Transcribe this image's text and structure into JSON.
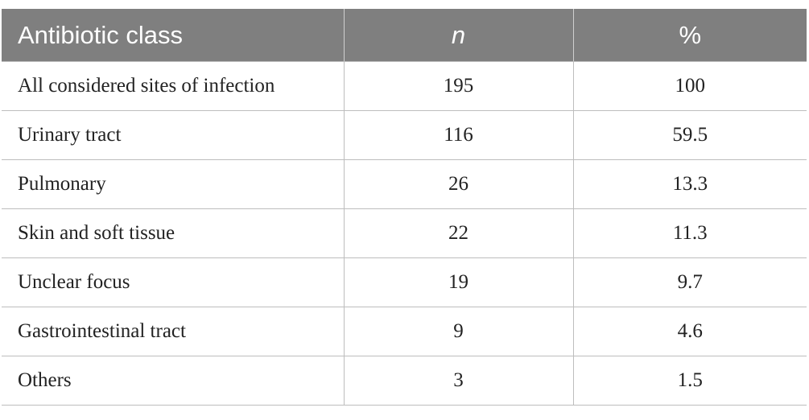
{
  "table": {
    "header": {
      "col1": "Antibiotic class",
      "col2": "n",
      "col3": "%"
    },
    "rows": [
      {
        "label": "All considered sites of infection",
        "n": "195",
        "pct": "100"
      },
      {
        "label": "Urinary tract",
        "n": "116",
        "pct": "59.5"
      },
      {
        "label": "Pulmonary",
        "n": "26",
        "pct": "13.3"
      },
      {
        "label": "Skin and soft tissue",
        "n": "22",
        "pct": "11.3"
      },
      {
        "label": "Unclear focus",
        "n": "19",
        "pct": "9.7"
      },
      {
        "label": "Gastrointestinal tract",
        "n": "9",
        "pct": "4.6"
      },
      {
        "label": "Others",
        "n": "3",
        "pct": "1.5"
      }
    ]
  },
  "colors": {
    "header_bg": "#7f7f7f",
    "header_text": "#ffffff",
    "grid": "#bdbdbd"
  }
}
